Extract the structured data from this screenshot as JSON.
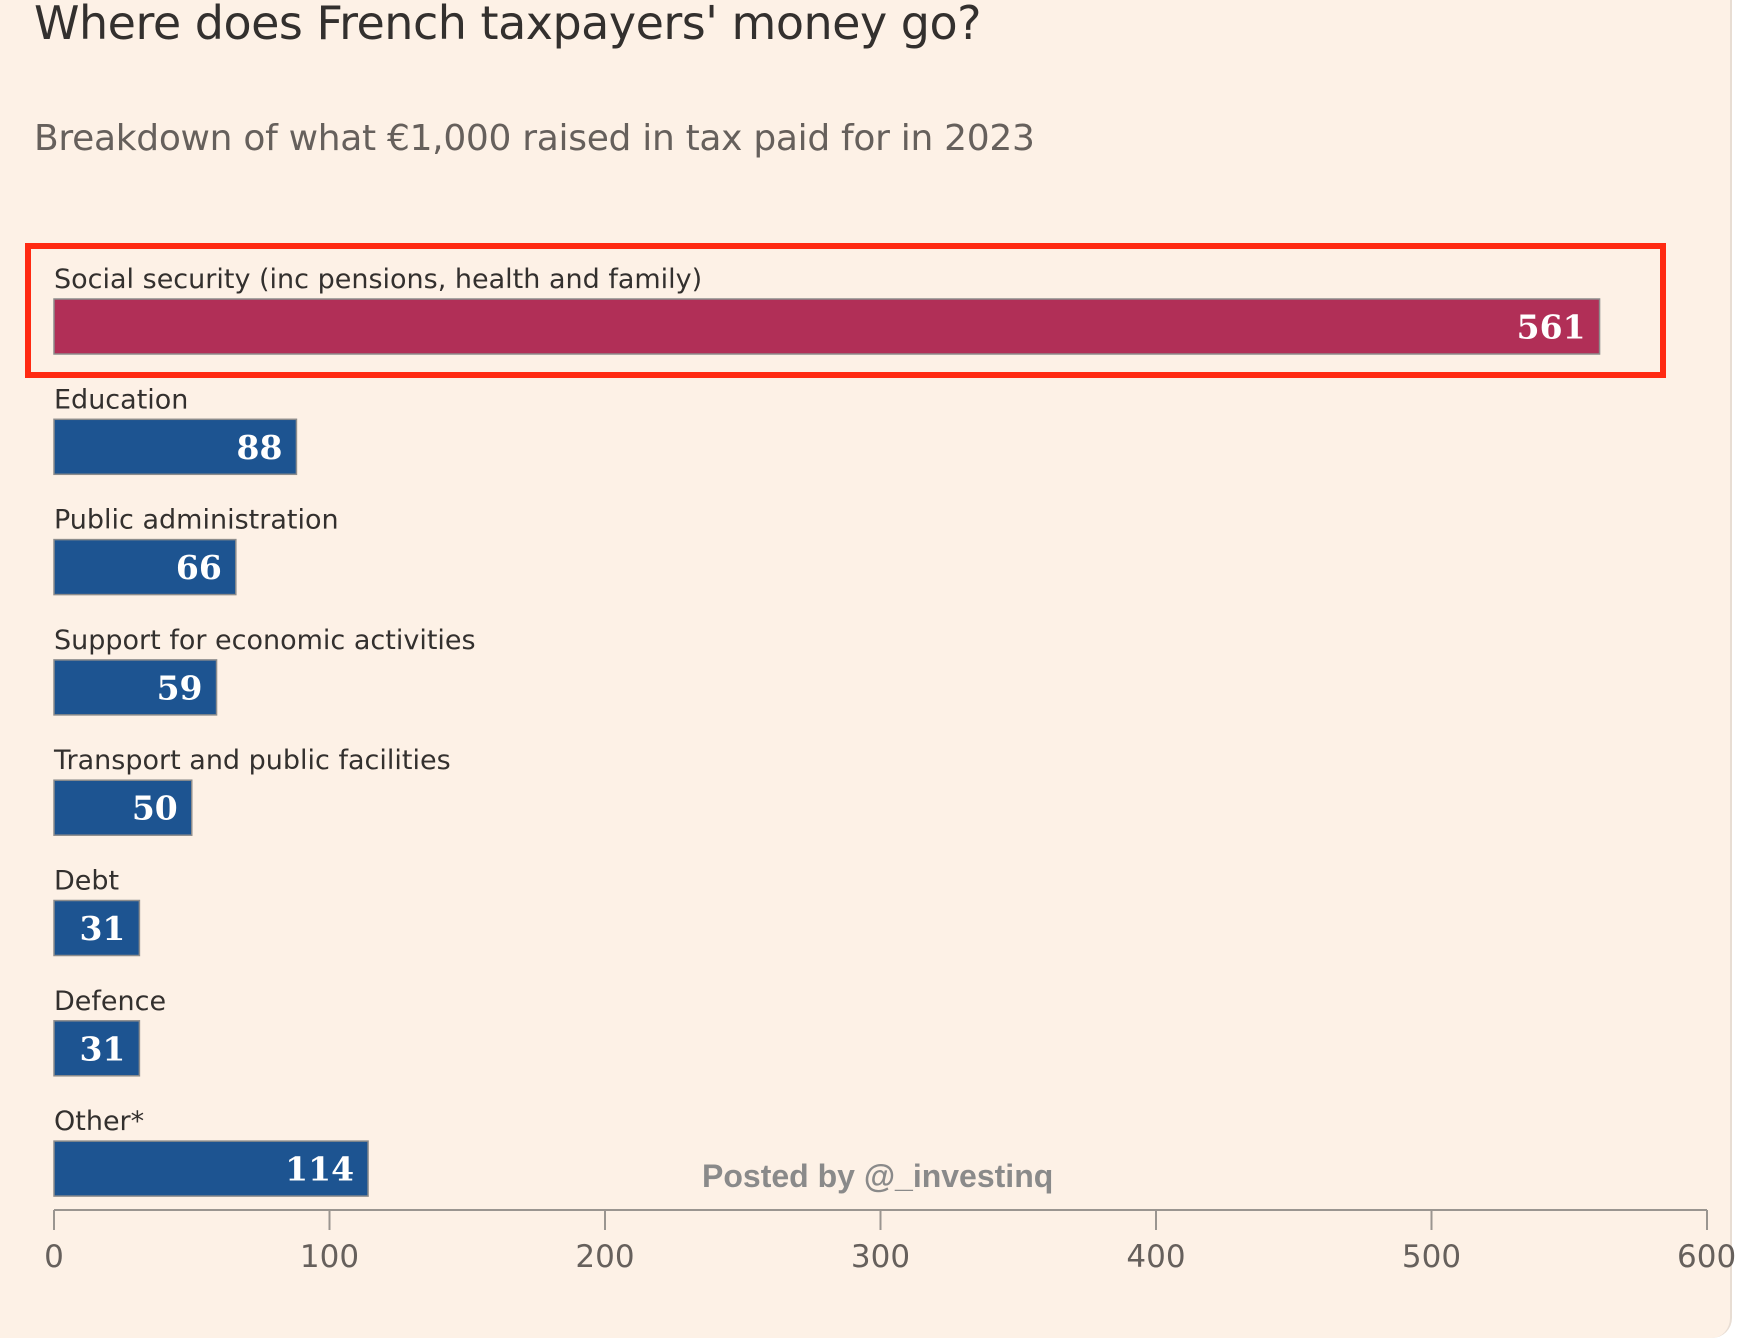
{
  "chart_data": {
    "type": "bar",
    "orientation": "horizontal",
    "title": "Where does French taxpayers' money go?",
    "subtitle": "Breakdown of what €1,000 raised in tax paid for in 2023",
    "categories": [
      "Social security (inc pensions, health and family)",
      "Education",
      "Public administration",
      "Support for economic activities",
      "Transport and public facilities",
      "Debt",
      "Defence",
      "Other*"
    ],
    "values": [
      561,
      88,
      66,
      59,
      50,
      31,
      31,
      114
    ],
    "xlim": [
      0,
      600
    ],
    "xticks": [
      0,
      100,
      200,
      300,
      400,
      500,
      600
    ],
    "xlabel": "",
    "ylabel": "",
    "highlighted_index": 0,
    "colors": {
      "highlight_bar": "#b12f57",
      "bar": "#1d5491",
      "highlight_box": "#ff2a12",
      "axis": "#9a9590",
      "background": "#fdf1e6"
    }
  },
  "watermark": "Posted by @_investinq"
}
